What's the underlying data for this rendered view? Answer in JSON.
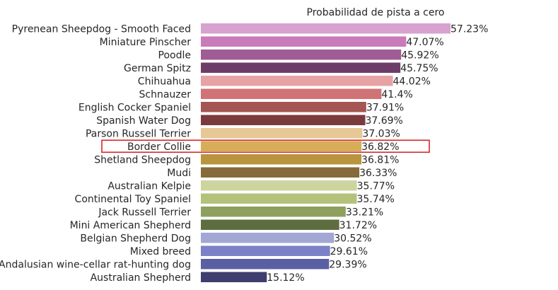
{
  "chart_data": {
    "type": "bar",
    "orientation": "horizontal",
    "title": "Probabilidad de pista a cero",
    "xlabel": "",
    "ylabel": "",
    "xlim": [
      0,
      57.23
    ],
    "grid": false,
    "highlighted_category": "Border Collie",
    "highlight_color": "#d62728",
    "categories": [
      "Pyrenean Sheepdog - Smooth Faced",
      "Miniature Pinscher",
      "Poodle",
      "German Spitz",
      "Chihuahua",
      "Schnauzer",
      "English Cocker Spaniel",
      "Spanish Water Dog",
      "Parson Russell Terrier",
      "Border Collie",
      "Shetland Sheepdog",
      "Mudi",
      "Australian Kelpie",
      "Continental Toy Spaniel",
      "Jack Russell Terrier",
      "Mini American Shepherd",
      "Belgian Shepherd Dog",
      "Mixed breed",
      "Andalusian wine-cellar rat-hunting dog",
      "Australian Shepherd"
    ],
    "values": [
      57.23,
      47.07,
      45.92,
      45.75,
      44.02,
      41.4,
      37.91,
      37.69,
      37.03,
      36.82,
      36.81,
      36.33,
      35.77,
      35.74,
      33.21,
      31.72,
      30.52,
      29.61,
      29.39,
      15.12
    ],
    "value_labels": [
      "57.23%",
      "47.07%",
      "45.92%",
      "45.75%",
      "44.02%",
      "41.4%",
      "37.91%",
      "37.69%",
      "37.03%",
      "36.82%",
      "36.81%",
      "36.33%",
      "35.77%",
      "35.74%",
      "33.21%",
      "31.72%",
      "30.52%",
      "29.61%",
      "29.39%",
      "15.12%"
    ],
    "colors": [
      "#d7a2ce",
      "#c97ab9",
      "#a05c94",
      "#6d3d6a",
      "#e7a2a4",
      "#d07375",
      "#a55552",
      "#7b3a3c",
      "#e6c896",
      "#d6ad58",
      "#b9943e",
      "#866a3a",
      "#ced49e",
      "#b3c27a",
      "#8ea05e",
      "#5e6d3f",
      "#a2a7d4",
      "#7b82c8",
      "#5a5ea2",
      "#3e3e6f"
    ]
  }
}
